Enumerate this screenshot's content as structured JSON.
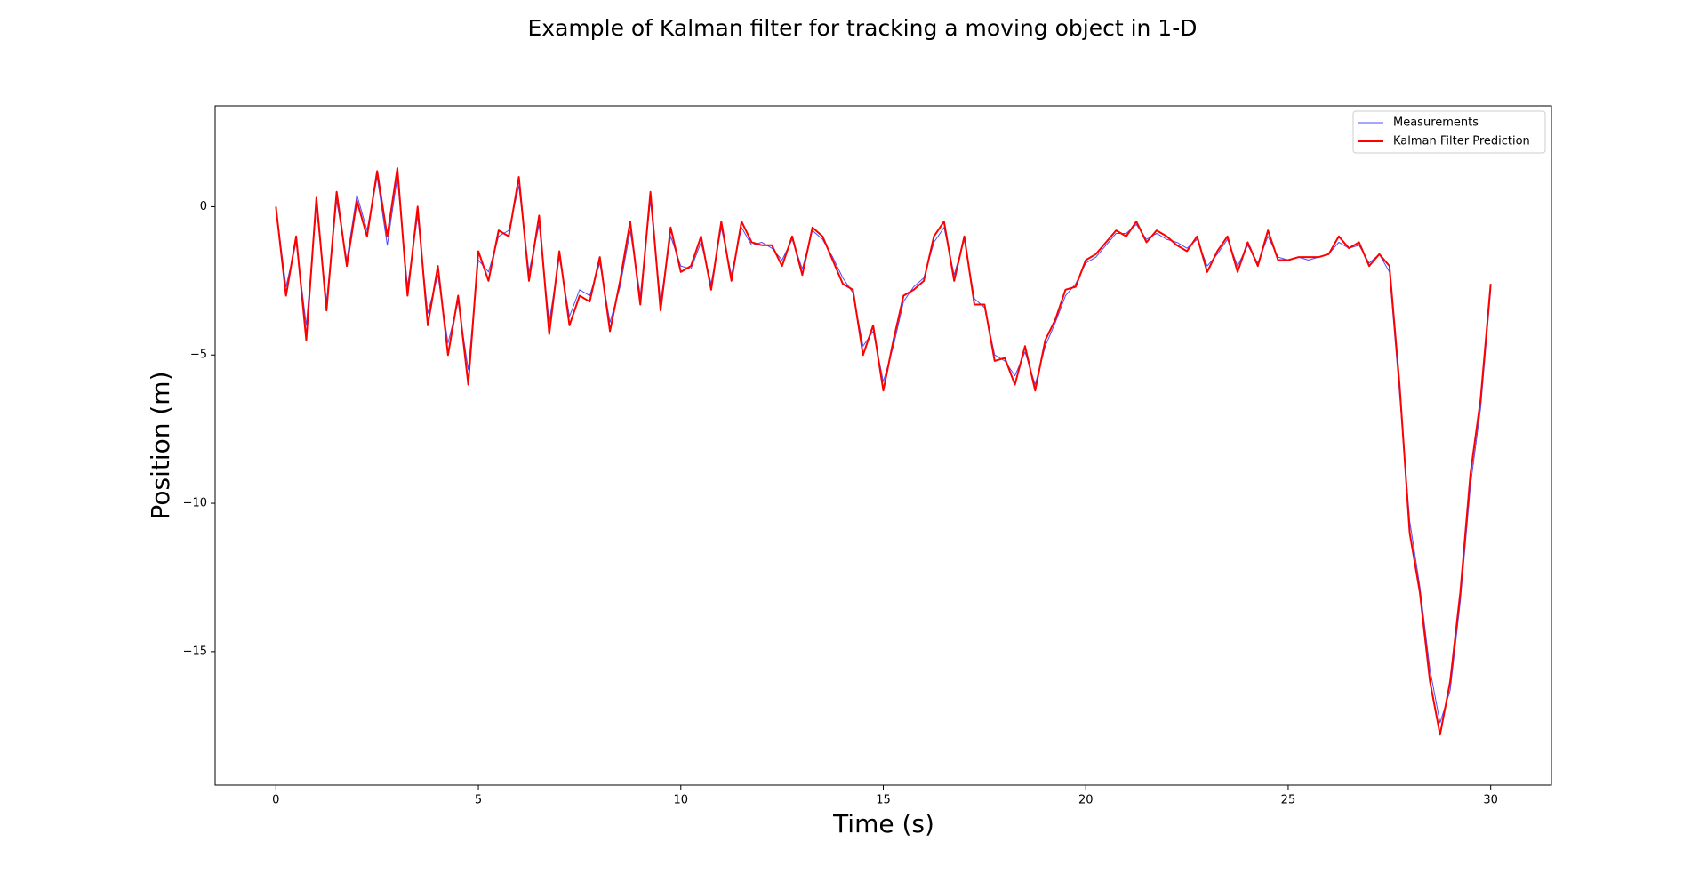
{
  "chart_data": {
    "type": "line",
    "title": "Example of Kalman filter for tracking a moving object in 1-D",
    "xlabel": "Time (s)",
    "ylabel": "Position (m)",
    "xlim": [
      -1.5,
      31.5
    ],
    "ylim": [
      -19.5,
      3.4
    ],
    "xticks": [
      0,
      5,
      10,
      15,
      20,
      25,
      30
    ],
    "yticks": [
      {
        "value": -15,
        "label": "−15"
      },
      {
        "value": -10,
        "label": "−10"
      },
      {
        "value": -5,
        "label": "−5"
      },
      0
    ],
    "legend": "upper right",
    "x": [
      0,
      0.25,
      0.5,
      0.75,
      1,
      1.25,
      1.5,
      1.75,
      2,
      2.25,
      2.5,
      2.75,
      3,
      3.25,
      3.5,
      3.75,
      4,
      4.25,
      4.5,
      4.75,
      5,
      5.25,
      5.5,
      5.75,
      6,
      6.25,
      6.5,
      6.75,
      7,
      7.25,
      7.5,
      7.75,
      8,
      8.25,
      8.5,
      8.75,
      9,
      9.25,
      9.5,
      9.75,
      10,
      10.25,
      10.5,
      10.75,
      11,
      11.25,
      11.5,
      11.75,
      12,
      12.25,
      12.5,
      12.75,
      13,
      13.25,
      13.5,
      13.75,
      14,
      14.25,
      14.5,
      14.75,
      15,
      15.25,
      15.5,
      15.75,
      16,
      16.25,
      16.5,
      16.75,
      17,
      17.25,
      17.5,
      17.75,
      18,
      18.25,
      18.5,
      18.75,
      19,
      19.25,
      19.5,
      19.75,
      20,
      20.25,
      20.5,
      20.75,
      21,
      21.25,
      21.5,
      21.75,
      22,
      22.25,
      22.5,
      22.75,
      23,
      23.25,
      23.5,
      23.75,
      24,
      24.25,
      24.5,
      24.75,
      25,
      25.25,
      25.5,
      25.75,
      26,
      26.25,
      26.5,
      26.75,
      27,
      27.25,
      27.5,
      27.75,
      28,
      28.25,
      28.5,
      28.75,
      29,
      29.25,
      29.5,
      29.75,
      30
    ],
    "series": [
      {
        "name": "Measurements",
        "color": "#0000ff",
        "width": 1,
        "values": [
          0,
          -2.7,
          -1.2,
          -4.0,
          0,
          -3.2,
          0.2,
          -1.8,
          0.4,
          -0.8,
          1.0,
          -1.3,
          1.0,
          -2.7,
          -0.3,
          -3.6,
          -2.3,
          -4.6,
          -3.2,
          -5.5,
          -1.8,
          -2.2,
          -1.0,
          -0.8,
          0.7,
          -2.2,
          -0.6,
          -3.9,
          -1.7,
          -3.7,
          -2.8,
          -3.0,
          -1.9,
          -3.9,
          -2.7,
          -0.8,
          -3.0,
          0.2,
          -3.2,
          -1.0,
          -2.0,
          -2.1,
          -1.2,
          -2.6,
          -0.7,
          -2.3,
          -0.7,
          -1.3,
          -1.2,
          -1.4,
          -1.8,
          -1.1,
          -2.1,
          -0.8,
          -1.1,
          -1.7,
          -2.4,
          -2.9,
          -4.7,
          -4.2,
          -5.9,
          -4.7,
          -3.2,
          -2.7,
          -2.4,
          -1.2,
          -0.7,
          -2.3,
          -1.1,
          -3.1,
          -3.4,
          -5.0,
          -5.2,
          -5.7,
          -4.9,
          -6.0,
          -4.7,
          -3.9,
          -3.0,
          -2.6,
          -1.9,
          -1.7,
          -1.3,
          -0.9,
          -0.9,
          -0.6,
          -1.1,
          -0.9,
          -1.1,
          -1.2,
          -1.4,
          -1.1,
          -2.0,
          -1.6,
          -1.1,
          -2.0,
          -1.3,
          -1.9,
          -1.0,
          -1.7,
          -1.8,
          -1.7,
          -1.8,
          -1.7,
          -1.6,
          -1.2,
          -1.4,
          -1.3,
          -1.9,
          -1.6,
          -2.2,
          -6.3,
          -10.6,
          -12.8,
          -15.6,
          -17.4,
          -16.3,
          -13.3,
          -9.4,
          -6.8,
          -2.8
        ]
      },
      {
        "name": "Kalman Filter Prediction",
        "color": "#ff0000",
        "width": 2,
        "values": [
          0,
          -3,
          -1,
          -4.5,
          0.3,
          -3.5,
          0.5,
          -2,
          0.2,
          -1,
          1.2,
          -1,
          1.3,
          -3,
          0,
          -4,
          -2,
          -5,
          -3,
          -6,
          -1.5,
          -2.5,
          -0.8,
          -1,
          1.0,
          -2.5,
          -0.3,
          -4.3,
          -1.5,
          -4,
          -3,
          -3.2,
          -1.7,
          -4.2,
          -2.5,
          -0.5,
          -3.3,
          0.5,
          -3.5,
          -0.7,
          -2.2,
          -2,
          -1.0,
          -2.8,
          -0.5,
          -2.5,
          -0.5,
          -1.2,
          -1.3,
          -1.3,
          -2.0,
          -1.0,
          -2.3,
          -0.7,
          -1.0,
          -1.8,
          -2.6,
          -2.8,
          -5,
          -4,
          -6.2,
          -4.5,
          -3,
          -2.8,
          -2.5,
          -1,
          -0.5,
          -2.5,
          -1,
          -3.3,
          -3.3,
          -5.2,
          -5.1,
          -6,
          -4.7,
          -6.2,
          -4.5,
          -3.8,
          -2.8,
          -2.7,
          -1.8,
          -1.6,
          -1.2,
          -0.8,
          -1.0,
          -0.5,
          -1.2,
          -0.8,
          -1.0,
          -1.3,
          -1.5,
          -1.0,
          -2.2,
          -1.5,
          -1.0,
          -2.2,
          -1.2,
          -2.0,
          -0.8,
          -1.8,
          -1.8,
          -1.7,
          -1.7,
          -1.7,
          -1.6,
          -1.0,
          -1.4,
          -1.2,
          -2.0,
          -1.6,
          -2.0,
          -6,
          -11,
          -13,
          -16,
          -17.8,
          -16,
          -13,
          -9,
          -6.5,
          -2.6
        ]
      }
    ]
  }
}
